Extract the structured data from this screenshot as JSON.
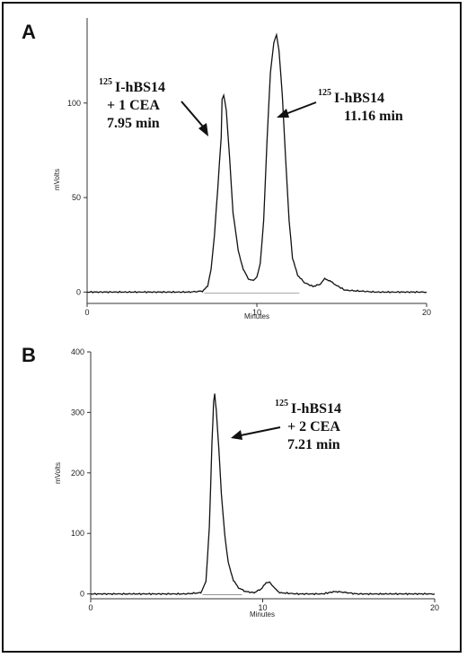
{
  "chart_data": [
    {
      "type": "line",
      "panel_label": "A",
      "xlabel": "Minutes",
      "ylabel": "mVolts",
      "xlim": [
        0,
        20
      ],
      "ylim": [
        -6,
        145
      ],
      "xticks": [
        0,
        10,
        20
      ],
      "yticks": [
        0,
        50,
        100
      ],
      "series": [
        {
          "x": [
            0,
            3,
            6,
            6.8,
            7.1,
            7.3,
            7.5,
            7.7,
            7.9,
            7.95,
            8.05,
            8.2,
            8.4,
            8.6,
            8.9,
            9.2,
            9.5,
            9.8,
            10.0,
            10.2,
            10.4,
            10.6,
            10.8,
            11.0,
            11.16,
            11.3,
            11.5,
            11.7,
            11.9,
            12.1,
            12.4,
            12.8,
            13.3,
            13.7,
            14.0,
            14.3,
            14.6,
            15.2,
            17,
            19,
            20
          ],
          "y": [
            0,
            0,
            0,
            0.5,
            3,
            12,
            30,
            55,
            82,
            102,
            104,
            96,
            70,
            42,
            22,
            12,
            7,
            6,
            8,
            15,
            38,
            80,
            116,
            132,
            136,
            128,
            104,
            70,
            38,
            18,
            9,
            5,
            3,
            4,
            7,
            6,
            4,
            1,
            0,
            0,
            0
          ]
        }
      ],
      "annotations": [
        {
          "sup": "125",
          "lines": [
            "I-hBS14",
            "+ 1 CEA",
            "7.95 min"
          ],
          "target_x": 7.95
        },
        {
          "sup": "125",
          "lines": [
            "I-hBS14",
            "11.16 min"
          ],
          "target_x": 11.16
        }
      ]
    },
    {
      "type": "line",
      "panel_label": "B",
      "xlabel": "Minutes",
      "ylabel": "mVolts",
      "xlim": [
        0,
        20
      ],
      "ylim": [
        -8,
        400
      ],
      "xticks": [
        0,
        10,
        20
      ],
      "yticks": [
        0,
        100,
        200,
        300,
        400
      ],
      "series": [
        {
          "x": [
            0,
            3,
            5.5,
            6.4,
            6.7,
            6.9,
            7.05,
            7.15,
            7.21,
            7.3,
            7.45,
            7.6,
            7.8,
            8.0,
            8.3,
            8.6,
            9.0,
            9.5,
            9.9,
            10.2,
            10.4,
            10.7,
            11.0,
            12,
            13.5,
            14.2,
            14.6,
            15.5,
            18,
            20
          ],
          "y": [
            0,
            0,
            0,
            2,
            20,
            110,
            250,
            318,
            330,
            305,
            240,
            165,
            95,
            52,
            22,
            10,
            4,
            2,
            8,
            18,
            20,
            9,
            2,
            0,
            0,
            4,
            3,
            0,
            0,
            0
          ]
        }
      ],
      "annotations": [
        {
          "sup": "125",
          "lines": [
            "I-hBS14",
            "+ 2 CEA",
            "7.21 min"
          ],
          "target_x": 7.21
        }
      ]
    }
  ]
}
